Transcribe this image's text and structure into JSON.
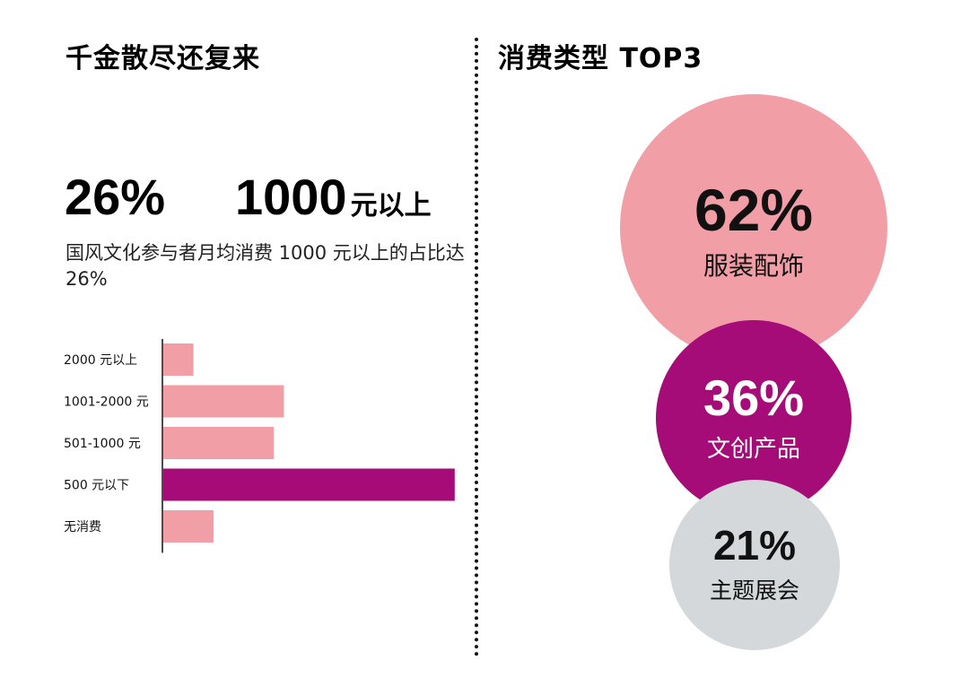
{
  "left": {
    "title": "千金散尽还复来",
    "stat_percent": "26%",
    "stat_amount": "1000",
    "stat_amount_unit": "元以上",
    "description": "国风文化参与者月均消费 1000 元以上的占比达 26%"
  },
  "right": {
    "title": "消费类型 TOP3"
  },
  "chart_data": [
    {
      "type": "bar",
      "orientation": "horizontal",
      "categories": [
        "2000 元以上",
        "1001-2000 元",
        "501-1000 元",
        "500 元以下",
        "无消费"
      ],
      "values": [
        3,
        12,
        11,
        29,
        5
      ],
      "highlight_index": 3,
      "colors": {
        "default": "#F19EA6",
        "highlight": "#A50C78"
      },
      "value_labels_shown": false,
      "xlim": [
        0,
        30
      ],
      "grid": false
    },
    {
      "type": "bubble",
      "categories": [
        "服装配饰",
        "文创产品",
        "主题展会"
      ],
      "values": [
        62,
        36,
        21
      ],
      "labels": [
        "62%",
        "36%",
        "21%"
      ],
      "colors": [
        "#F19EA6",
        "#A50C78",
        "#D4D8DA"
      ]
    }
  ],
  "colors": {
    "pink": "#F19EA6",
    "magenta": "#A50C78",
    "gray": "#D4D8DA",
    "text": "#111111"
  }
}
